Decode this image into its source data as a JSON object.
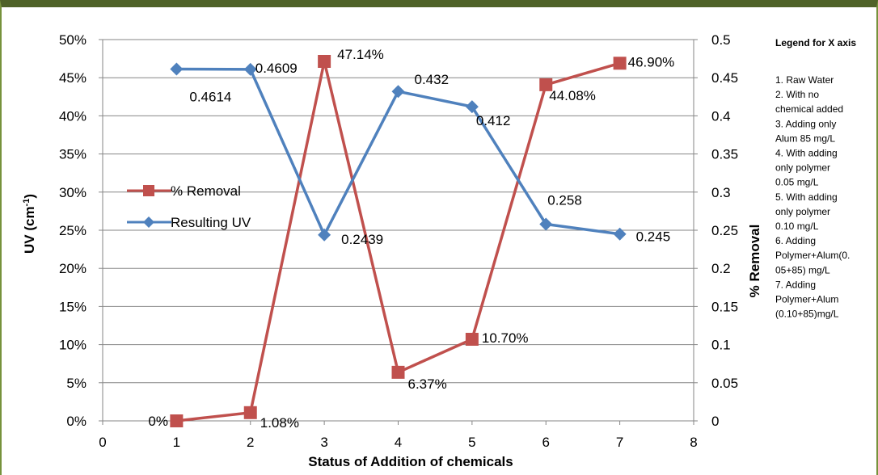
{
  "chart_data": {
    "type": "line",
    "xlabel": "Status of Addition of chemicals",
    "ylabel_left": "UV (cm",
    "ylabel_left_sup": "-1",
    "ylabel_left_close": ")",
    "ylabel_right": "% Removal",
    "xlim": [
      0,
      8
    ],
    "x_ticks": [
      "0",
      "1",
      "2",
      "3",
      "4",
      "5",
      "6",
      "7",
      "8"
    ],
    "ylim_left": [
      0,
      0.5
    ],
    "ylim_right": [
      0,
      0.5
    ],
    "y_ticks_left": [
      "0%",
      "5%",
      "10%",
      "15%",
      "20%",
      "25%",
      "30%",
      "35%",
      "40%",
      "45%",
      "50%"
    ],
    "y_ticks_right": [
      "0",
      "0.05",
      "0.1",
      "0.15",
      "0.2",
      "0.25",
      "0.3",
      "0.35",
      "0.4",
      "0.45",
      "0.5"
    ],
    "grid": "horizontal",
    "legend_position": "left-center",
    "series": [
      {
        "name": "% Removal",
        "marker": "square",
        "color": "#c0504d",
        "x": [
          1,
          2,
          3,
          4,
          5,
          6,
          7
        ],
        "values": [
          0,
          0.0108,
          0.4714,
          0.0637,
          0.107,
          0.4408,
          0.469
        ],
        "labels": [
          "0%",
          "1.08%",
          "47.14%",
          "6.37%",
          "10.70%",
          "44.08%",
          "46.90%"
        ]
      },
      {
        "name": "Resulting UV",
        "marker": "diamond",
        "color": "#4f81bd",
        "x": [
          1,
          2,
          3,
          4,
          5,
          6,
          7
        ],
        "values": [
          0.4614,
          0.4609,
          0.2439,
          0.432,
          0.412,
          0.258,
          0.245
        ],
        "labels": [
          "0.4614",
          "0.4609",
          "0.2439",
          "0.432",
          "0.412",
          "0.258",
          "0.245"
        ]
      }
    ],
    "x_legend": {
      "title": "Legend for X axis",
      "lines": [
        "1. Raw Water",
        "2. With no",
        "chemical added",
        "3. Adding only",
        "Alum 85 mg/L",
        "4. With adding",
        "only polymer",
        "0.05 mg/L",
        "5. With adding",
        "only polymer",
        "0.10 mg/L",
        "6. Adding",
        "Polymer+Alum(0.",
        "05+85) mg/L",
        "7. Adding",
        "Polymer+Alum",
        "(0.10+85)mg/L"
      ]
    }
  }
}
